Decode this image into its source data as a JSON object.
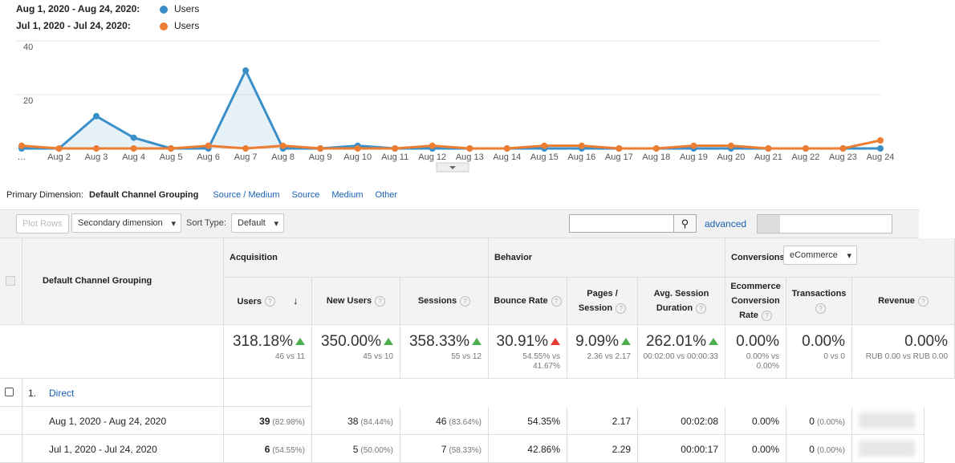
{
  "chart_data": {
    "type": "line",
    "x": [
      "…",
      "Aug 2",
      "Aug 3",
      "Aug 4",
      "Aug 5",
      "Aug 6",
      "Aug 7",
      "Aug 8",
      "Aug 9",
      "Aug 10",
      "Aug 11",
      "Aug 12",
      "Aug 13",
      "Aug 14",
      "Aug 15",
      "Aug 16",
      "Aug 17",
      "Aug 18",
      "Aug 19",
      "Aug 20",
      "Aug 21",
      "Aug 22",
      "Aug 23",
      "Aug 24"
    ],
    "series": [
      {
        "period": "Aug 1, 2020 - Aug 24, 2020:",
        "name": "Users",
        "color": "#3a8fc9",
        "area": true,
        "values": [
          0,
          0,
          12,
          4,
          0,
          0,
          29,
          0,
          0,
          1,
          0,
          0,
          0,
          0,
          0,
          0,
          0,
          0,
          0,
          0,
          0,
          0,
          0,
          0
        ]
      },
      {
        "period": "Jul 1, 2020 - Jul 24, 2020:",
        "name": "Users",
        "color": "#ed7d31",
        "area": false,
        "values": [
          1,
          0,
          0,
          0,
          0,
          1,
          0,
          1,
          0,
          0,
          0,
          1,
          0,
          0,
          1,
          1,
          0,
          0,
          1,
          1,
          0,
          0,
          0,
          3
        ]
      }
    ],
    "ylim": [
      0,
      40
    ],
    "yticks": [
      20,
      40
    ],
    "grid": true
  },
  "primary_dimension": {
    "label": "Primary Dimension:",
    "active": "Default Channel Grouping",
    "options": [
      "Source / Medium",
      "Source",
      "Medium",
      "Other"
    ]
  },
  "toolbar": {
    "plot_rows": "Plot Rows",
    "secondary": "Secondary dimension",
    "sort_label": "Sort Type:",
    "sort": "Default",
    "advanced": "advanced"
  },
  "table": {
    "dimension": "Default Channel Grouping",
    "groups": [
      {
        "label": "Acquisition"
      },
      {
        "label": "Behavior"
      },
      {
        "label": "Conversions",
        "select": "eCommerce"
      }
    ],
    "columns": [
      "Users",
      "New Users",
      "Sessions",
      "Bounce Rate",
      "Pages / Session",
      "Avg. Session Duration",
      "Ecommerce Conversion Rate",
      "Transactions",
      "Revenue"
    ],
    "totals": [
      {
        "value": "318.18%",
        "compare": "46 vs 11",
        "arrow_color": "#4caf50"
      },
      {
        "value": "350.00%",
        "compare": "45 vs 10",
        "arrow_color": "#4caf50"
      },
      {
        "value": "358.33%",
        "compare": "55 vs 12",
        "arrow_color": "#4caf50"
      },
      {
        "value": "30.91%",
        "compare": "54.55% vs 41.67%",
        "arrow_color": "#e53935"
      },
      {
        "value": "9.09%",
        "compare": "2.36 vs 2.17",
        "arrow_color": "#4caf50"
      },
      {
        "value": "262.01%",
        "compare": "00:02:00 vs 00:00:33",
        "arrow_color": "#4caf50"
      },
      {
        "value": "0.00%",
        "compare": "0.00% vs 0.00%"
      },
      {
        "value": "0.00%",
        "compare": "0 vs 0"
      },
      {
        "value": "0.00%",
        "compare": "RUB 0.00 vs RUB 0.00"
      }
    ],
    "rows": [
      {
        "index": "1.",
        "label": "Direct",
        "periods": [
          {
            "label": "Aug 1, 2020 - Aug 24, 2020",
            "cells": [
              {
                "value": "39",
                "share": "(82.98%)"
              },
              {
                "value": "38",
                "share": "(84.44%)"
              },
              {
                "value": "46",
                "share": "(83.64%)"
              },
              {
                "value": "54.35%"
              },
              {
                "value": "2.17"
              },
              {
                "value": "00:02:08"
              },
              {
                "value": "0.00%"
              },
              {
                "value": "0",
                "share": "(0.00%)"
              }
            ]
          },
          {
            "label": "Jul 1, 2020 - Jul 24, 2020",
            "cells": [
              {
                "value": "6",
                "share": "(54.55%)"
              },
              {
                "value": "5",
                "share": "(50.00%)"
              },
              {
                "value": "7",
                "share": "(58.33%)"
              },
              {
                "value": "42.86%"
              },
              {
                "value": "2.29"
              },
              {
                "value": "00:00:17"
              },
              {
                "value": "0.00%"
              },
              {
                "value": "0",
                "share": "(0.00%)"
              }
            ]
          }
        ]
      }
    ]
  }
}
